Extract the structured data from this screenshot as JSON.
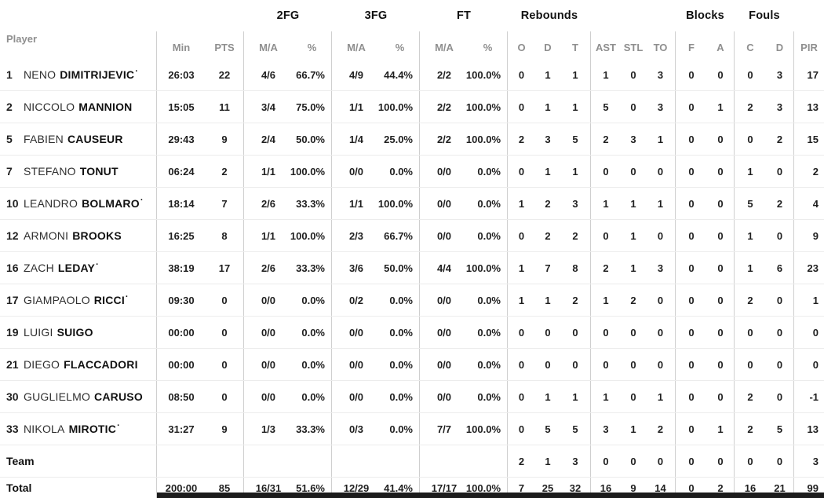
{
  "table": {
    "starter_marker": "·",
    "groups": {
      "fg2": "2FG",
      "fg3": "3FG",
      "ft": "FT",
      "rebounds": "Rebounds",
      "blocks": "Blocks",
      "fouls": "Fouls"
    },
    "subheaders": {
      "player": "Player",
      "min": "Min",
      "pts": "PTS",
      "ma": "M/A",
      "pct": "%",
      "o": "O",
      "d": "D",
      "t": "T",
      "ast": "AST",
      "stl": "STL",
      "to": "TO",
      "f": "F",
      "a": "A",
      "c": "C",
      "d2": "D",
      "pir": "PIR"
    },
    "rows": [
      {
        "num": "1",
        "first": "NENO",
        "last": "DIMITRIJEVIC",
        "starter": true,
        "cells": [
          "26:03",
          "22",
          "4/6",
          "66.7%",
          "4/9",
          "44.4%",
          "2/2",
          "100.0%",
          "0",
          "1",
          "1",
          "1",
          "0",
          "3",
          "0",
          "0",
          "0",
          "3",
          "17"
        ]
      },
      {
        "num": "2",
        "first": "NICCOLO",
        "last": "MANNION",
        "starter": false,
        "cells": [
          "15:05",
          "11",
          "3/4",
          "75.0%",
          "1/1",
          "100.0%",
          "2/2",
          "100.0%",
          "0",
          "1",
          "1",
          "5",
          "0",
          "3",
          "0",
          "1",
          "2",
          "3",
          "13"
        ]
      },
      {
        "num": "5",
        "first": "FABIEN",
        "last": "CAUSEUR",
        "starter": false,
        "cells": [
          "29:43",
          "9",
          "2/4",
          "50.0%",
          "1/4",
          "25.0%",
          "2/2",
          "100.0%",
          "2",
          "3",
          "5",
          "2",
          "3",
          "1",
          "0",
          "0",
          "0",
          "2",
          "15"
        ]
      },
      {
        "num": "7",
        "first": "STEFANO",
        "last": "TONUT",
        "starter": false,
        "cells": [
          "06:24",
          "2",
          "1/1",
          "100.0%",
          "0/0",
          "0.0%",
          "0/0",
          "0.0%",
          "0",
          "1",
          "1",
          "0",
          "0",
          "0",
          "0",
          "0",
          "1",
          "0",
          "2"
        ]
      },
      {
        "num": "10",
        "first": "LEANDRO",
        "last": "BOLMARO",
        "starter": true,
        "cells": [
          "18:14",
          "7",
          "2/6",
          "33.3%",
          "1/1",
          "100.0%",
          "0/0",
          "0.0%",
          "1",
          "2",
          "3",
          "1",
          "1",
          "1",
          "0",
          "0",
          "5",
          "2",
          "4"
        ]
      },
      {
        "num": "12",
        "first": "ARMONI",
        "last": "BROOKS",
        "starter": false,
        "cells": [
          "16:25",
          "8",
          "1/1",
          "100.0%",
          "2/3",
          "66.7%",
          "0/0",
          "0.0%",
          "0",
          "2",
          "2",
          "0",
          "1",
          "0",
          "0",
          "0",
          "1",
          "0",
          "9"
        ]
      },
      {
        "num": "16",
        "first": "ZACH",
        "last": "LEDAY",
        "starter": true,
        "cells": [
          "38:19",
          "17",
          "2/6",
          "33.3%",
          "3/6",
          "50.0%",
          "4/4",
          "100.0%",
          "1",
          "7",
          "8",
          "2",
          "1",
          "3",
          "0",
          "0",
          "1",
          "6",
          "23"
        ]
      },
      {
        "num": "17",
        "first": "GIAMPAOLO",
        "last": "RICCI",
        "starter": true,
        "cells": [
          "09:30",
          "0",
          "0/0",
          "0.0%",
          "0/2",
          "0.0%",
          "0/0",
          "0.0%",
          "1",
          "1",
          "2",
          "1",
          "2",
          "0",
          "0",
          "0",
          "2",
          "0",
          "1"
        ]
      },
      {
        "num": "19",
        "first": "LUIGI",
        "last": "SUIGO",
        "starter": false,
        "cells": [
          "00:00",
          "0",
          "0/0",
          "0.0%",
          "0/0",
          "0.0%",
          "0/0",
          "0.0%",
          "0",
          "0",
          "0",
          "0",
          "0",
          "0",
          "0",
          "0",
          "0",
          "0",
          "0"
        ]
      },
      {
        "num": "21",
        "first": "DIEGO",
        "last": "FLACCADORI",
        "starter": false,
        "cells": [
          "00:00",
          "0",
          "0/0",
          "0.0%",
          "0/0",
          "0.0%",
          "0/0",
          "0.0%",
          "0",
          "0",
          "0",
          "0",
          "0",
          "0",
          "0",
          "0",
          "0",
          "0",
          "0"
        ]
      },
      {
        "num": "30",
        "first": "GUGLIELMO",
        "last": "CARUSO",
        "starter": false,
        "cells": [
          "08:50",
          "0",
          "0/0",
          "0.0%",
          "0/0",
          "0.0%",
          "0/0",
          "0.0%",
          "0",
          "1",
          "1",
          "1",
          "0",
          "1",
          "0",
          "0",
          "2",
          "0",
          "-1"
        ]
      },
      {
        "num": "33",
        "first": "NIKOLA",
        "last": "MIROTIC",
        "starter": true,
        "cells": [
          "31:27",
          "9",
          "1/3",
          "33.3%",
          "0/3",
          "0.0%",
          "7/7",
          "100.0%",
          "0",
          "5",
          "5",
          "3",
          "1",
          "2",
          "0",
          "1",
          "2",
          "5",
          "13"
        ]
      }
    ],
    "team_row": {
      "label": "Team",
      "cells": [
        "",
        "",
        "",
        "",
        "",
        "",
        "",
        "",
        "2",
        "1",
        "3",
        "0",
        "0",
        "0",
        "0",
        "0",
        "0",
        "0",
        "3"
      ]
    },
    "total_row": {
      "label": "Total",
      "cells": [
        "200:00",
        "85",
        "16/31",
        "51.6%",
        "12/29",
        "41.4%",
        "17/17",
        "100.0%",
        "7",
        "25",
        "32",
        "16",
        "9",
        "14",
        "0",
        "2",
        "16",
        "21",
        "99"
      ]
    }
  }
}
